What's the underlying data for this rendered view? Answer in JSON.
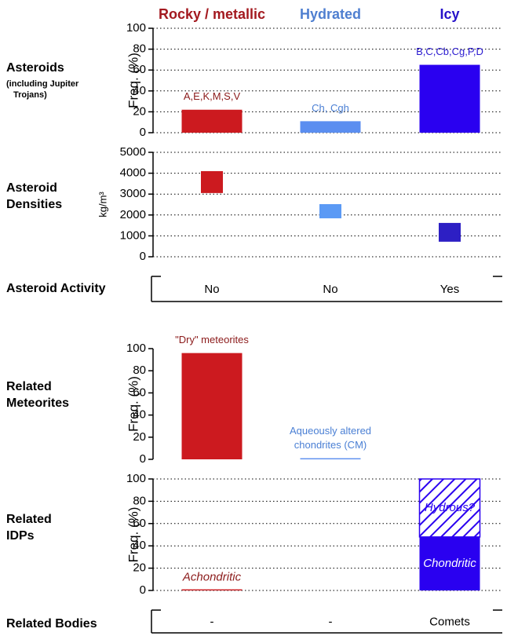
{
  "columns": [
    {
      "label": "Rocky / metallic",
      "color": "#a3191f"
    },
    {
      "label": "Hydrated",
      "color": "#4f7fd0"
    },
    {
      "label": "Icy",
      "color": "#2612c9"
    }
  ],
  "chart_data": [
    {
      "type": "bar",
      "title": [
        "Asteroids"
      ],
      "subtitle": [
        "(including Jupiter",
        "Trojans)"
      ],
      "ylabel": "Freq. (%)",
      "values": [
        22,
        11,
        65
      ],
      "colors": [
        "#cc1a1f",
        "#5b8ef0",
        "#2a00f0"
      ],
      "annotations": [
        [
          "A,E,K,M,S,V"
        ],
        [
          "Ch, Cgh"
        ],
        [
          "B,C,Cb,Cg,P,D"
        ]
      ],
      "annotation_colors": [
        "#8b1a1a",
        "#4a7fd4",
        "#2a1ad0"
      ],
      "ylim": [
        0,
        100
      ],
      "yticks": [
        0,
        20,
        40,
        60,
        80,
        100
      ],
      "grid": true
    },
    {
      "type": "range_bar",
      "title": [
        "Asteroid",
        "Densities"
      ],
      "ylabel": "kg/m³",
      "low": [
        3050,
        1840,
        720
      ],
      "high": [
        4100,
        2520,
        1620
      ],
      "colors": [
        "#cc1a1f",
        "#5b9af5",
        "#2d1fc4"
      ],
      "ylim": [
        0,
        5000
      ],
      "yticks": [
        0,
        1000,
        2000,
        3000,
        4000,
        5000
      ],
      "grid": true
    },
    {
      "type": "text_row",
      "title": [
        "Asteroid Activity"
      ],
      "values": [
        "No",
        "No",
        "Yes"
      ]
    },
    {
      "type": "bar",
      "title": [
        "Related",
        "Meteorites"
      ],
      "ylabel": "Freq. (%)",
      "values": [
        96,
        1,
        null
      ],
      "colors": [
        "#cc1a1f",
        "#5b8ef0",
        "#2a00f0"
      ],
      "annotations": [
        [
          "\"Dry\" meteorites"
        ],
        [
          "Aqueously altered",
          "chondrites (CM)"
        ],
        null
      ],
      "annotation_colors": [
        "#8b1a1a",
        "#4a7fd4",
        "#2a1ad0"
      ],
      "ylim": [
        0,
        100
      ],
      "yticks": [
        0,
        20,
        40,
        60,
        80,
        100
      ],
      "grid": false
    },
    {
      "type": "stacked_bar",
      "title": [
        "Related",
        "IDPs"
      ],
      "ylabel": "Freq. (%)",
      "series": [
        {
          "name": "Achondritic",
          "color": "#cc1a1f",
          "label_color": "#8b1a1a",
          "values": [
            1,
            null,
            null
          ]
        },
        {
          "name": "Chondritic",
          "color": "#2a00f0",
          "label_color": "#ffffff",
          "values": [
            null,
            null,
            48
          ]
        },
        {
          "name": "Hydrous?",
          "color": "#2a00f0",
          "pattern": "hatch",
          "label_color": "#2a00f0",
          "values": [
            null,
            null,
            52
          ]
        }
      ],
      "ylim": [
        0,
        100
      ],
      "yticks": [
        0,
        20,
        40,
        60,
        80,
        100
      ],
      "grid": true
    },
    {
      "type": "text_row",
      "title": [
        "Related Bodies"
      ],
      "values": [
        "-",
        "-",
        "Comets"
      ]
    }
  ]
}
